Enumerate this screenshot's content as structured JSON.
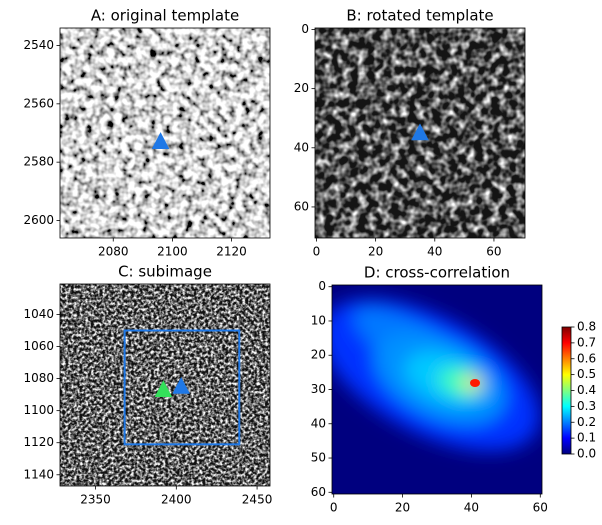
{
  "chart_data": [
    {
      "type": "image",
      "title": "A: original template",
      "xlim": [
        2062,
        2133
      ],
      "ylim": [
        2606,
        2534
      ],
      "xticks": [
        2080,
        2100,
        2120
      ],
      "yticks": [
        2540,
        2560,
        2580,
        2600
      ],
      "markers": [
        {
          "x": 2096,
          "y": 2573,
          "color": "#1f78e6"
        }
      ]
    },
    {
      "type": "image",
      "title": "B: rotated template",
      "xlim": [
        -0.5,
        70.5
      ],
      "ylim": [
        70.5,
        -0.5
      ],
      "xticks": [
        0,
        20,
        40,
        60
      ],
      "yticks": [
        0,
        20,
        40,
        60
      ],
      "markers": [
        {
          "x": 35,
          "y": 35,
          "color": "#1f78e6"
        }
      ]
    },
    {
      "type": "image",
      "title": "C: subimage",
      "xlim": [
        2328,
        2458
      ],
      "ylim": [
        1147,
        1021
      ],
      "xticks": [
        2350,
        2400,
        2450
      ],
      "yticks": [
        1040,
        1060,
        1080,
        1100,
        1120,
        1140
      ],
      "box": {
        "x": [
          2368,
          2439
        ],
        "y": [
          1050,
          1121
        ],
        "color": "#1f78e6"
      },
      "markers": [
        {
          "x": 2403,
          "y": 1085,
          "color": "#1f78e6"
        },
        {
          "x": 2392,
          "y": 1087,
          "color": "#33e05a"
        }
      ]
    },
    {
      "type": "heatmap",
      "title": "D: cross-correlation",
      "xlim": [
        -0.5,
        60.5
      ],
      "ylim": [
        60.5,
        -0.5
      ],
      "xticks": [
        0,
        20,
        40,
        60
      ],
      "yticks": [
        0,
        10,
        20,
        30,
        40,
        50,
        60
      ],
      "colormap": "jet",
      "colorbar": {
        "lim": [
          0,
          0.8
        ],
        "ticks": [
          {
            "value": 0,
            "label": "0.0"
          },
          {
            "value": 0.1,
            "label": "0.1"
          },
          {
            "value": 0.2,
            "label": "0.2"
          },
          {
            "value": 0.3,
            "label": "0.3"
          },
          {
            "value": 0.4,
            "label": "0.4"
          },
          {
            "value": 0.5,
            "label": "0.5"
          },
          {
            "value": 0.6,
            "label": "0.6"
          },
          {
            "value": 0.7,
            "label": "0.7"
          },
          {
            "value": 0.8,
            "label": "0.8"
          }
        ]
      }
    }
  ]
}
